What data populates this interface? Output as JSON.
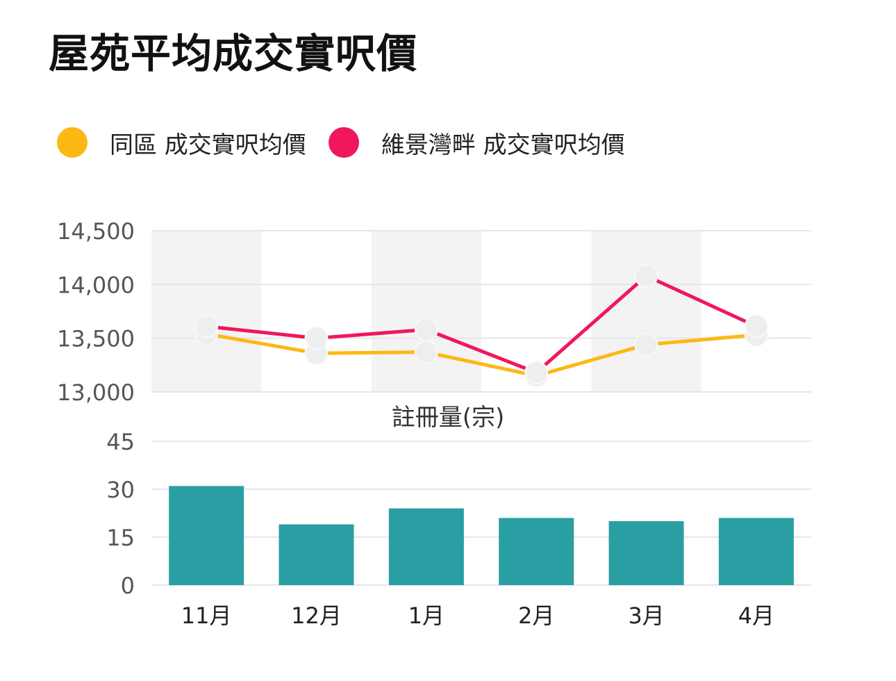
{
  "title": "屋苑平均成交實呎價",
  "colors": {
    "area": "#FDB813",
    "estate": "#F0185A",
    "bars": "#2A9FA3",
    "grid": "#E3E6EB",
    "band": "#F3F3F3"
  },
  "legend": [
    {
      "label": "同區 成交實呎均價",
      "color": "#FDB813"
    },
    {
      "label": "維景灣畔 成交實呎均價",
      "color": "#F0185A"
    }
  ],
  "chart_data": [
    {
      "type": "line",
      "categories": [
        "11月",
        "12月",
        "1月",
        "2月",
        "3月",
        "4月"
      ],
      "series": [
        {
          "name": "同區 成交實呎均價",
          "values": [
            13540,
            13360,
            13370,
            13150,
            13440,
            13530
          ]
        },
        {
          "name": "維景灣畔 成交實呎均價",
          "values": [
            13610,
            13500,
            13580,
            13180,
            14080,
            13610
          ]
        }
      ],
      "ylim": [
        13000,
        14500
      ],
      "yticks": [
        13000,
        13500,
        14000,
        14500
      ],
      "ytick_labels": [
        "13,000",
        "13,500",
        "14,000",
        "14,500"
      ],
      "grid": true,
      "legend_position": "top-left"
    },
    {
      "type": "bar",
      "title": "註冊量(宗)",
      "categories": [
        "11月",
        "12月",
        "1月",
        "2月",
        "3月",
        "4月"
      ],
      "values": [
        31,
        19,
        24,
        21,
        20,
        21
      ],
      "ylim": [
        0,
        45
      ],
      "yticks": [
        0,
        15,
        30,
        45
      ],
      "ytick_labels": [
        "0",
        "15",
        "30",
        "45"
      ],
      "xtick_labels": [
        "11月",
        "12月",
        "1月",
        "2月",
        "3月",
        "4月"
      ],
      "grid": true
    }
  ]
}
